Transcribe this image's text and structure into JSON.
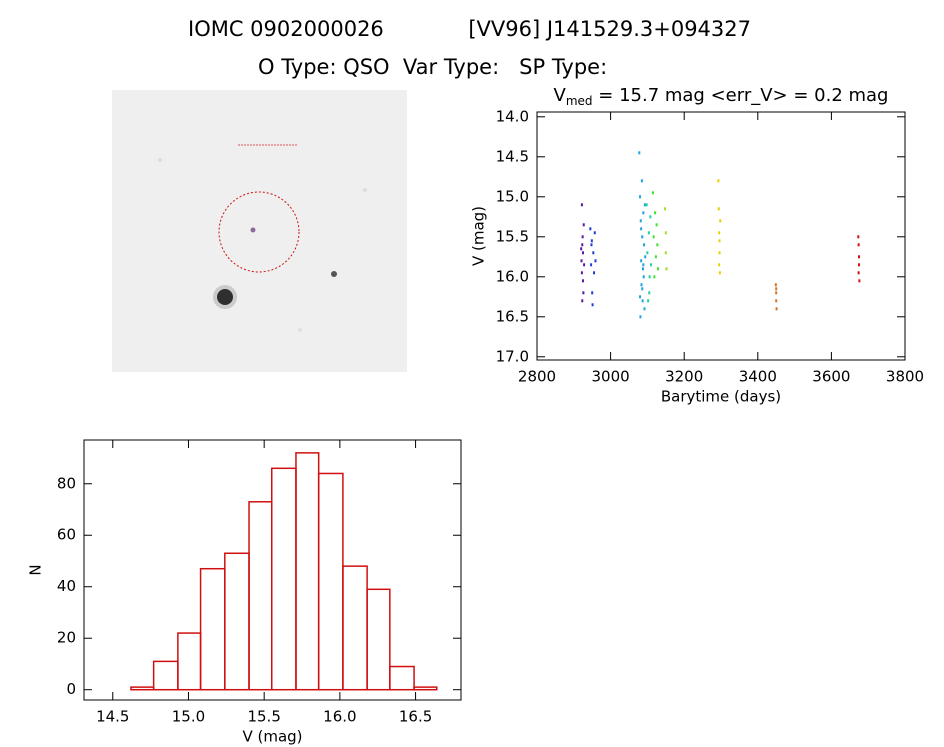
{
  "header": {
    "title_left": "IOMC 0902000026",
    "title_right": "[VV96] J141529.3+094327",
    "subtitle": "O Type: QSO  Var Type:   SP Type:"
  },
  "chart_data": [
    {
      "type": "scatter",
      "title": {
        "main": "V",
        "subscript": "med",
        "rest": " = 15.7 mag <err_V> = 0.2 mag"
      },
      "x_label": "Barytime (days)",
      "y_label": "V (mag)",
      "xlim": [
        2800,
        3800
      ],
      "xticks": [
        2800,
        3000,
        3200,
        3400,
        3600,
        3800
      ],
      "ylim": [
        13.94,
        17.04
      ],
      "y_inverted": true,
      "yticks": [
        {
          "value": 14,
          "label": "14.0"
        },
        14.5,
        {
          "value": 15,
          "label": "15.0"
        },
        15.5,
        {
          "value": 16,
          "label": "16.0"
        },
        16.5,
        {
          "value": 17,
          "label": "17.0"
        }
      ],
      "series": [
        {
          "color": "#5a1a9c",
          "x": [
            2920,
            2921,
            2922,
            2922,
            2923,
            2924,
            2925,
            2926,
            2927,
            2928,
            2923,
            2925
          ],
          "values": [
            15.65,
            15.8,
            15.1,
            15.95,
            16.3,
            15.5,
            15.7,
            16.2,
            15.35,
            15.85,
            15.6,
            16.05
          ]
        },
        {
          "color": "#1f3fcf",
          "x": [
            2945,
            2947,
            2949,
            2951,
            2953,
            2955,
            2957,
            2959,
            2950,
            2948
          ],
          "values": [
            15.4,
            15.85,
            15.55,
            16.35,
            15.7,
            15.95,
            15.45,
            15.8,
            16.2,
            15.6
          ]
        },
        {
          "color": "#1aa5e0",
          "x": [
            3078,
            3080,
            3081,
            3082,
            3083,
            3084,
            3085,
            3086,
            3087,
            3088,
            3089,
            3090,
            3091,
            3092,
            3093,
            3094,
            3080,
            3083,
            3086,
            3089
          ],
          "values": [
            14.45,
            15.0,
            16.5,
            15.3,
            15.8,
            16.1,
            14.8,
            15.5,
            16.3,
            15.9,
            15.2,
            16.0,
            15.6,
            16.4,
            15.1,
            15.75,
            16.25,
            15.4,
            16.15,
            15.85
          ]
        },
        {
          "color": "#20d0a0",
          "x": [
            3098,
            3100,
            3102,
            3104,
            3106,
            3108,
            3110,
            3105
          ],
          "values": [
            15.1,
            15.7,
            16.3,
            15.45,
            16.0,
            15.25,
            15.85,
            16.2
          ]
        },
        {
          "color": "#40e030",
          "x": [
            3115,
            3117,
            3119,
            3121,
            3123,
            3125,
            3127,
            3129
          ],
          "values": [
            14.95,
            15.5,
            16.0,
            15.2,
            15.75,
            15.35,
            15.6,
            15.9
          ]
        },
        {
          "color": "#a0e020",
          "x": [
            3148,
            3150,
            3152,
            3150
          ],
          "values": [
            15.15,
            15.45,
            15.9,
            15.7
          ]
        },
        {
          "color": "#e8d000",
          "x": [
            3293,
            3294,
            3295,
            3296,
            3297,
            3298,
            3296,
            3295
          ],
          "values": [
            14.8,
            15.15,
            15.45,
            15.7,
            15.95,
            15.3,
            15.55,
            15.85
          ]
        },
        {
          "color": "#d87020",
          "x": [
            3449,
            3450,
            3450,
            3451,
            3450
          ],
          "values": [
            16.1,
            16.2,
            16.3,
            16.4,
            16.15
          ]
        },
        {
          "color": "#d01010",
          "x": [
            3673,
            3674,
            3675,
            3676,
            3675,
            3674
          ],
          "values": [
            15.5,
            15.6,
            15.85,
            16.05,
            15.75,
            15.95
          ]
        }
      ]
    },
    {
      "type": "histogram",
      "x_label": "V (mag)",
      "y_label": "N",
      "color": "#d01010",
      "bins": [
        14.46,
        14.62,
        14.77,
        14.93,
        15.08,
        15.24,
        15.4,
        15.55,
        15.71,
        15.86,
        16.02,
        16.18,
        16.33,
        16.49,
        16.64
      ],
      "counts": [
        0,
        1,
        11,
        22,
        47,
        53,
        73,
        86,
        92,
        84,
        48,
        39,
        9,
        1
      ],
      "xlim": [
        14.31,
        16.8
      ],
      "xticks": [
        14.5,
        {
          "value": 15,
          "label": "15.0"
        },
        15.5,
        {
          "value": 16,
          "label": "16.0"
        },
        16.5
      ],
      "ylim": [
        -4,
        97
      ],
      "yticks": [
        0,
        20,
        40,
        60,
        80
      ]
    }
  ]
}
